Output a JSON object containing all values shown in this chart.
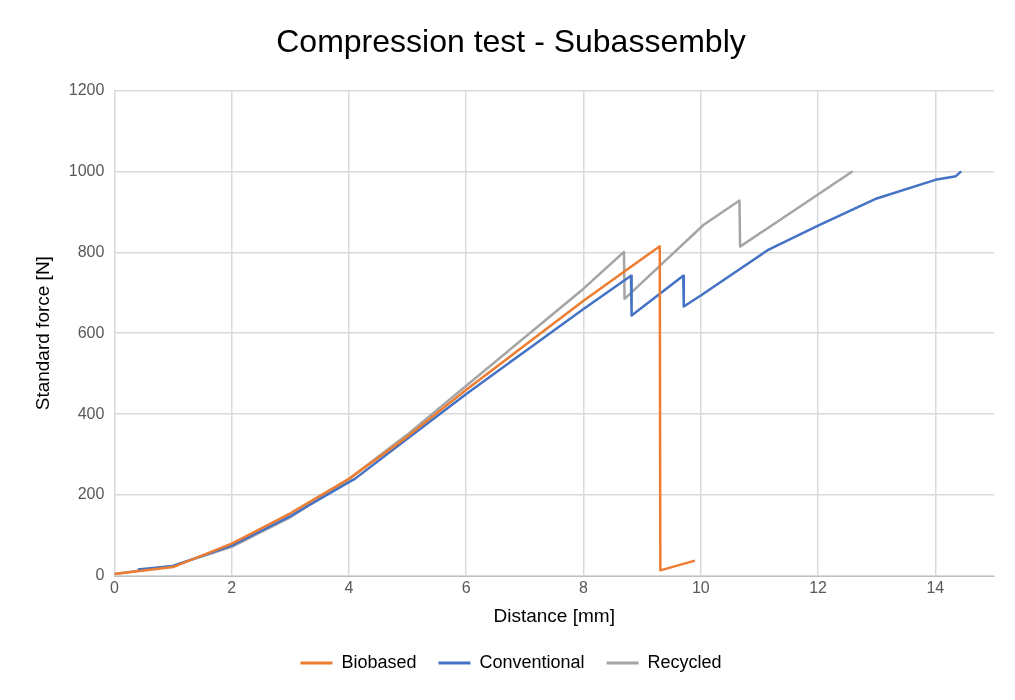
{
  "chart_data": {
    "type": "line",
    "title": "Compression test - Subassembly",
    "xlabel": "Distance [mm]",
    "ylabel": "Standard force [N]",
    "xlim": [
      0,
      15
    ],
    "xticks": [
      0,
      2,
      4,
      6,
      8,
      10,
      12,
      14
    ],
    "ylim": [
      0,
      1200
    ],
    "yticks": [
      0,
      200,
      400,
      600,
      800,
      1000,
      1200
    ],
    "grid": true,
    "legend": "bottom",
    "marker": "none",
    "line_style": "solid",
    "series": [
      {
        "name": "Biobased",
        "color": "#ed7d31",
        "x": [
          0,
          1,
          2,
          3,
          4,
          5,
          6,
          7,
          8,
          9.3,
          9.31,
          9.9
        ],
        "values": [
          5,
          22,
          80,
          155,
          240,
          345,
          460,
          570,
          680,
          815,
          14,
          38
        ]
      },
      {
        "name": "Conventional",
        "color": "#4472c4",
        "x": [
          0.4,
          1,
          2,
          3,
          4,
          4.1,
          5,
          6,
          7,
          8,
          8.81,
          8.82,
          9.7,
          9.71,
          10,
          11.15,
          12,
          13,
          14,
          14.35,
          14.44
        ],
        "values": [
          16,
          25,
          75,
          148,
          232,
          240,
          340,
          450,
          555,
          660,
          742,
          644,
          742,
          666,
          693,
          806,
          866,
          933,
          979,
          988,
          1000
        ]
      },
      {
        "name": "Recycled",
        "color": "#a5a5a5",
        "x": [
          0,
          1,
          2,
          3,
          4,
          5,
          6,
          7,
          8,
          8.69,
          8.7,
          10.05,
          10.66,
          10.67,
          12.59
        ],
        "values": [
          5,
          25,
          72,
          145,
          240,
          350,
          470,
          590,
          710,
          801,
          685,
          868,
          928,
          814,
          1000
        ]
      }
    ]
  }
}
